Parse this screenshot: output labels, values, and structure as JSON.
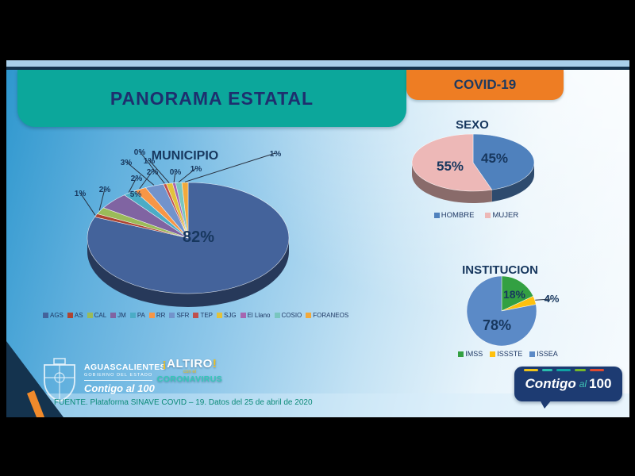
{
  "header": {
    "title": "PANORAMA ESTATAL",
    "tag": "COVID-19"
  },
  "colors": {
    "teal_band": "#0CA79B",
    "orange_band": "#EE7D23",
    "navy_text": "#1E2F6E",
    "label_text": "#17375E",
    "source_text": "#0B8A78",
    "background_blue": "#2E97CE"
  },
  "chart_data": [
    {
      "type": "pie",
      "variant": "3d",
      "title": "MUNICIPIO",
      "unit": "%",
      "legend_position": "bottom",
      "slices": [
        {
          "label": "AGS",
          "value": 82,
          "color": "#44639B"
        },
        {
          "label": "AS",
          "value": 1,
          "color": "#AE4431"
        },
        {
          "label": "CAL",
          "value": 2,
          "color": "#9BBB59"
        },
        {
          "label": "JM",
          "value": 5,
          "color": "#8064A2"
        },
        {
          "label": "PA",
          "value": 2,
          "color": "#4BACC6"
        },
        {
          "label": "RR",
          "value": 2,
          "color": "#F79646"
        },
        {
          "label": "SFR",
          "value": 3,
          "color": "#7293CB"
        },
        {
          "label": "TEP",
          "value": 0,
          "color": "#C0504D"
        },
        {
          "label": "SJG",
          "value": 1,
          "color": "#E2C23C"
        },
        {
          "label": "El Llano",
          "value": 0,
          "color": "#A666B0"
        },
        {
          "label": "COSIO",
          "value": 1,
          "color": "#79C6BF"
        },
        {
          "label": "FORANEOS",
          "value": 1,
          "color": "#F2A93B"
        }
      ]
    },
    {
      "type": "pie",
      "variant": "3d",
      "title": "SEXO",
      "unit": "%",
      "legend_position": "bottom",
      "slices": [
        {
          "label": "HOMBRE",
          "value": 45,
          "color": "#4F81BD"
        },
        {
          "label": "MUJER",
          "value": 55,
          "color": "#EDB8B7"
        }
      ]
    },
    {
      "type": "pie",
      "variant": "flat",
      "title": "INSTITUCION",
      "unit": "%",
      "legend_position": "bottom",
      "slices": [
        {
          "label": "IMSS",
          "value": 18,
          "color": "#33A042"
        },
        {
          "label": "ISSSTE",
          "value": 4,
          "color": "#FFC10E"
        },
        {
          "label": "ISSEA",
          "value": 78,
          "color": "#5B8AC7"
        }
      ]
    }
  ],
  "footer": {
    "gov": {
      "state": "AGUASCALIENTES",
      "line2": "GOBIERNO DEL ESTADO",
      "slogan": "Contigo al 100"
    },
    "campaign": {
      "open": "¡",
      "name": "ALTIRO",
      "close": "!",
      "mid": "con el",
      "bottom": "CORONAVIRUS"
    },
    "source": "FUENTE. Plataforma SINAVE COVID – 19. Datos del 25 de abril de 2020",
    "brand": {
      "word1": "Contigo",
      "word2": "al",
      "word3": "100"
    }
  }
}
